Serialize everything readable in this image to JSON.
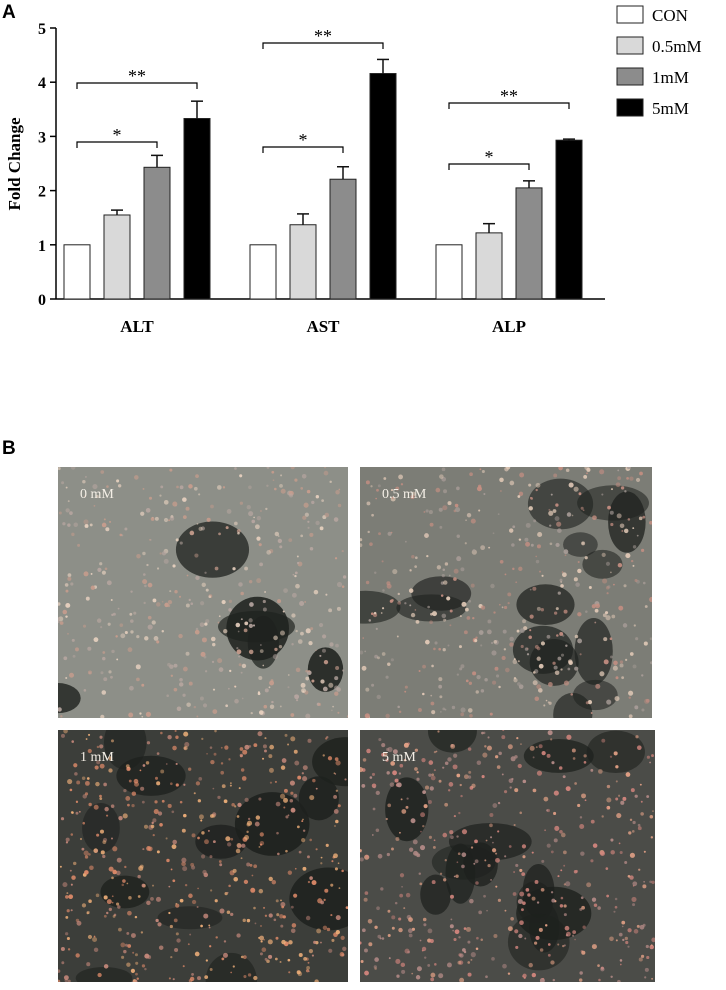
{
  "panel_a": {
    "letter": "A"
  },
  "panel_b": {
    "letter": "B",
    "images": [
      {
        "label": "0 mM",
        "bg": "#8d8f88"
      },
      {
        "label": "0.5 mM",
        "bg": "#7c7d76"
      },
      {
        "label": "1 mM",
        "bg": "#3c3e3a"
      },
      {
        "label": "5 mM",
        "bg": "#4b4c48"
      }
    ]
  },
  "chart_data": {
    "type": "bar",
    "title": "",
    "xlabel": "",
    "ylabel": "Fold Change",
    "ylim": [
      0,
      5
    ],
    "yticks": [
      0,
      1,
      2,
      3,
      4,
      5
    ],
    "categories": [
      "ALT",
      "AST",
      "ALP"
    ],
    "legend_position": "top-right",
    "series": [
      {
        "name": "CON",
        "values": [
          1.0,
          1.0,
          1.0
        ],
        "errors": [
          0,
          0,
          0
        ],
        "color": "#ffffff"
      },
      {
        "name": "0.5mM",
        "values": [
          1.55,
          1.37,
          1.22
        ],
        "errors": [
          0.09,
          0.2,
          0.17
        ],
        "color": "#d9d9d9"
      },
      {
        "name": "1mM",
        "values": [
          2.43,
          2.21,
          2.05
        ],
        "errors": [
          0.22,
          0.23,
          0.13
        ],
        "color": "#8c8c8c"
      },
      {
        "name": "5mM",
        "values": [
          3.33,
          4.16,
          2.93
        ],
        "errors": [
          0.32,
          0.26,
          0.02
        ],
        "color": "#000000"
      }
    ],
    "annotations": [
      {
        "category": "ALT",
        "from": "CON",
        "to": "1mM",
        "label": "*"
      },
      {
        "category": "ALT",
        "from": "CON",
        "to": "5mM",
        "label": "**"
      },
      {
        "category": "AST",
        "from": "CON",
        "to": "1mM",
        "label": "*"
      },
      {
        "category": "AST",
        "from": "CON",
        "to": "5mM",
        "label": "**"
      },
      {
        "category": "ALP",
        "from": "CON",
        "to": "1mM",
        "label": "*"
      },
      {
        "category": "ALP",
        "from": "CON",
        "to": "5mM",
        "label": "**"
      }
    ]
  }
}
